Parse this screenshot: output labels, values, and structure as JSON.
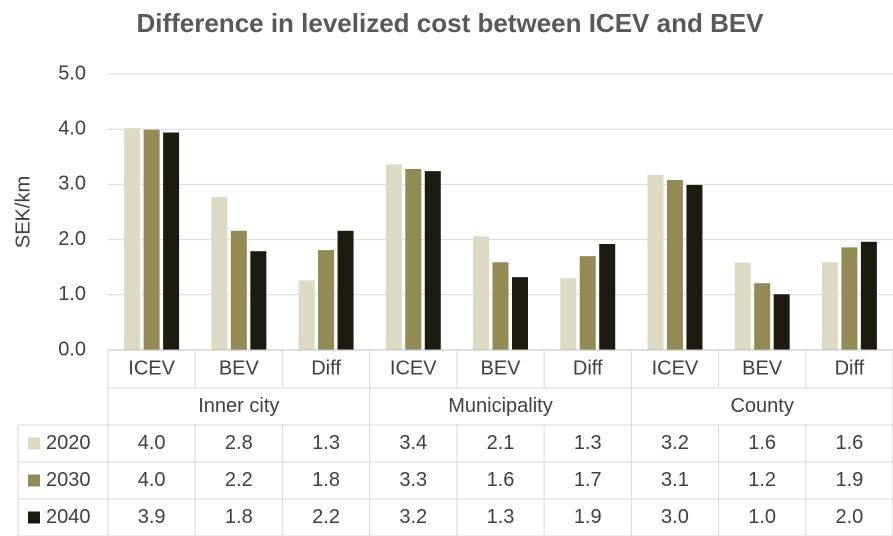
{
  "chart_data": {
    "type": "bar",
    "title": "Difference in levelized cost between ICEV and BEV",
    "y_label": "SEK/km",
    "categories": [
      "ICEV",
      "BEV",
      "Diff",
      "ICEV",
      "BEV",
      "Diff",
      "ICEV",
      "BEV",
      "Diff"
    ],
    "category_groups": [
      "Inner city",
      "Municipality",
      "County"
    ],
    "series": [
      {
        "name": "2020",
        "color": "#ddd9c3",
        "values": [
          4.02,
          2.77,
          1.26,
          3.36,
          2.06,
          1.3,
          3.17,
          1.58,
          1.59
        ],
        "value_labels": [
          "4.0",
          "2.8",
          "1.3",
          "3.4",
          "2.1",
          "1.3",
          "3.2",
          "1.6",
          "1.6"
        ]
      },
      {
        "name": "2030",
        "color": "#948a54",
        "values": [
          3.99,
          2.16,
          1.81,
          3.28,
          1.59,
          1.7,
          3.08,
          1.21,
          1.86
        ],
        "value_labels": [
          "4.0",
          "2.2",
          "1.8",
          "3.3",
          "1.6",
          "1.7",
          "3.1",
          "1.2",
          "1.9"
        ]
      },
      {
        "name": "2040",
        "color": "#1d1b10",
        "values": [
          3.94,
          1.79,
          2.16,
          3.24,
          1.32,
          1.92,
          2.99,
          1.01,
          1.96
        ],
        "value_labels": [
          "3.9",
          "1.8",
          "2.2",
          "3.2",
          "1.3",
          "1.9",
          "3.0",
          "1.0",
          "2.0"
        ]
      }
    ],
    "ylim": [
      0,
      5
    ],
    "yticks": [
      {
        "value": 0,
        "label": "0.0"
      },
      {
        "value": 1,
        "label": "1.0"
      },
      {
        "value": 2,
        "label": "2.0"
      },
      {
        "value": 3,
        "label": "3.0"
      },
      {
        "value": 4,
        "label": "4.0"
      },
      {
        "value": 5,
        "label": "5.0"
      }
    ],
    "grid": true
  }
}
